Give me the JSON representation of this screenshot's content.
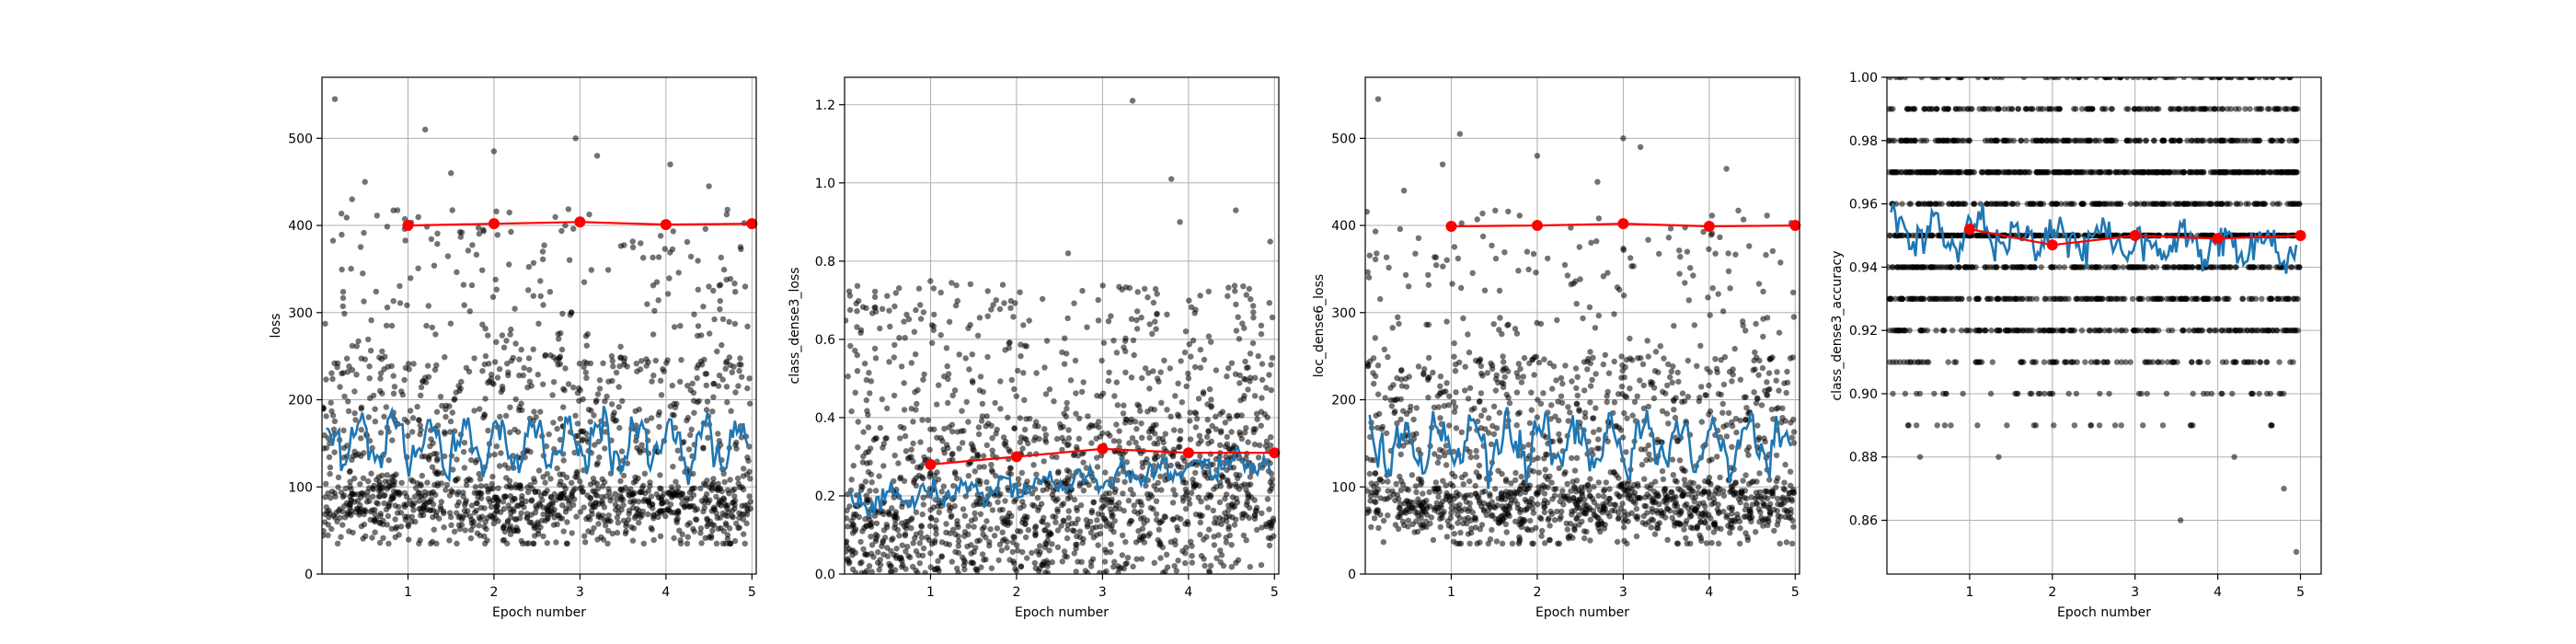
{
  "colors": {
    "background": "#ffffff",
    "scatter": "#000000",
    "moving_average": "#1f77b4",
    "epoch_mean": "#ff0000",
    "grid": "#b0b0b0",
    "axes": "#000000"
  },
  "chart_data": [
    {
      "type": "scatter",
      "xlabel": "Epoch number",
      "ylabel": "loss",
      "xlim": [
        0,
        5.05
      ],
      "ylim": [
        0,
        570
      ],
      "xticks": [
        1,
        2,
        3,
        4,
        5
      ],
      "yticks": [
        0,
        100,
        200,
        300,
        400,
        500
      ],
      "grid": true,
      "scatter": {
        "seed": 11,
        "model": "loss",
        "count": 1600,
        "outliers": [
          [
            0.15,
            545
          ],
          [
            0.5,
            450
          ],
          [
            1.2,
            510
          ],
          [
            2.0,
            485
          ],
          [
            2.95,
            500
          ],
          [
            4.05,
            470
          ],
          [
            3.2,
            480
          ],
          [
            0.35,
            430
          ],
          [
            1.5,
            460
          ],
          [
            4.5,
            445
          ]
        ]
      },
      "moving_average": {
        "x_start": 0.05,
        "x_end": 4.95,
        "count": 200,
        "base": 150,
        "amplitude": 22,
        "period": 0.4,
        "noise": 9
      },
      "epoch_mean": {
        "x": [
          1,
          2,
          3,
          4,
          5
        ],
        "y": [
          400,
          402,
          404,
          401,
          402
        ]
      }
    },
    {
      "type": "scatter",
      "xlabel": "Epoch number",
      "ylabel": "class_dense3_loss",
      "xlim": [
        0,
        5.05
      ],
      "ylim": [
        0,
        1.27
      ],
      "xticks": [
        1,
        2,
        3,
        4,
        5
      ],
      "yticks": [
        0.0,
        0.2,
        0.4,
        0.6,
        0.8,
        1.0,
        1.2
      ],
      "grid": true,
      "scatter": {
        "seed": 23,
        "model": "class",
        "count": 1600,
        "outliers": [
          [
            3.35,
            1.21
          ],
          [
            3.8,
            1.01
          ],
          [
            4.55,
            0.93
          ],
          [
            3.9,
            0.9
          ],
          [
            2.6,
            0.82
          ],
          [
            4.95,
            0.85
          ]
        ]
      },
      "moving_average": {
        "x_start": 0.05,
        "x_end": 4.95,
        "count": 200,
        "base": 0.18,
        "slope": 0.022,
        "amplitude": 0.02,
        "period": 0.45,
        "noise": 0.012
      },
      "epoch_mean": {
        "x": [
          1,
          2,
          3,
          4,
          5
        ],
        "y": [
          0.28,
          0.3,
          0.32,
          0.31,
          0.31
        ]
      }
    },
    {
      "type": "scatter",
      "xlabel": "Epoch number",
      "ylabel": "loc_dense6_loss",
      "xlim": [
        0,
        5.05
      ],
      "ylim": [
        0,
        570
      ],
      "xticks": [
        1,
        2,
        3,
        4,
        5
      ],
      "yticks": [
        0,
        100,
        200,
        300,
        400,
        500
      ],
      "grid": true,
      "scatter": {
        "seed": 37,
        "model": "loss",
        "count": 1600,
        "outliers": [
          [
            0.15,
            545
          ],
          [
            0.9,
            470
          ],
          [
            1.1,
            505
          ],
          [
            2.0,
            480
          ],
          [
            3.0,
            500
          ],
          [
            3.2,
            490
          ],
          [
            4.2,
            465
          ],
          [
            0.45,
            440
          ],
          [
            2.7,
            450
          ]
        ]
      },
      "moving_average": {
        "x_start": 0.05,
        "x_end": 4.95,
        "count": 200,
        "base": 148,
        "amplitude": 22,
        "period": 0.4,
        "noise": 9
      },
      "epoch_mean": {
        "x": [
          1,
          2,
          3,
          4,
          5
        ],
        "y": [
          399,
          400,
          402,
          399,
          400
        ]
      }
    },
    {
      "type": "scatter",
      "xlabel": "Epoch number",
      "ylabel": "class_dense3_accuracy",
      "xlim": [
        0,
        5.25
      ],
      "ylim": [
        0.843,
        1.0
      ],
      "xticks": [
        1,
        2,
        3,
        4,
        5
      ],
      "yticks": [
        0.86,
        0.88,
        0.9,
        0.92,
        0.94,
        0.96,
        0.98,
        1.0
      ],
      "grid": true,
      "scatter": {
        "seed": 51,
        "model": "accuracy",
        "count": 2200,
        "outliers": [
          [
            4.95,
            0.85
          ],
          [
            3.55,
            0.86
          ],
          [
            4.8,
            0.87
          ],
          [
            0.4,
            0.88
          ],
          [
            1.35,
            0.88
          ],
          [
            4.2,
            0.88
          ]
        ]
      },
      "moving_average": {
        "x_start": 0.05,
        "x_end": 4.95,
        "count": 200,
        "base": 0.952,
        "slope": -0.0014,
        "amplitude": 0.004,
        "period": 0.5,
        "noise": 0.003
      },
      "epoch_mean": {
        "x": [
          1,
          2,
          3,
          4,
          5
        ],
        "y": [
          0.952,
          0.947,
          0.95,
          0.949,
          0.95
        ]
      }
    }
  ]
}
